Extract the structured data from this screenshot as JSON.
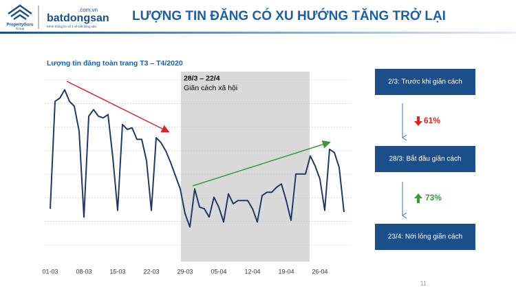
{
  "header": {
    "logo_brand": "PropertyGuru",
    "logo_group": "Group",
    "logo_site": "batdongsan",
    "logo_domain": ".com.vn",
    "logo_tagline": "Kênh thông tin số 1 về bất động sản",
    "title": "LƯỢNG TIN ĐĂNG CÓ XU HƯỚNG TĂNG TRỞ LẠI"
  },
  "chart_data": {
    "type": "line",
    "title": "Lượng tin đăng toàn trang T3 – T4/2020",
    "categories": [
      "01-03",
      null,
      null,
      null,
      null,
      null,
      null,
      "08-03",
      null,
      null,
      null,
      null,
      null,
      null,
      "15-03",
      null,
      null,
      null,
      null,
      null,
      null,
      "22-03",
      null,
      null,
      null,
      null,
      null,
      null,
      "29-03",
      null,
      null,
      null,
      null,
      null,
      null,
      "05-04",
      null,
      null,
      null,
      null,
      null,
      null,
      "12-04",
      null,
      null,
      null,
      null,
      null,
      null,
      "19-04",
      null,
      null,
      null,
      null,
      null,
      null,
      "26-04",
      null,
      null,
      null,
      null,
      null
    ],
    "values": [
      22,
      87,
      89,
      94,
      87,
      84,
      69,
      17,
      78,
      82,
      78,
      77,
      79,
      53,
      21,
      73,
      70,
      71,
      64,
      64,
      51,
      21,
      65,
      62,
      57,
      50,
      42,
      34,
      19,
      11,
      34,
      23,
      22,
      17,
      29,
      23,
      14,
      31,
      25,
      27,
      27,
      27,
      22,
      14,
      30,
      32,
      32,
      35,
      37,
      27,
      15,
      43,
      43,
      43,
      54,
      48,
      40,
      21,
      58,
      56,
      47,
      20
    ],
    "color": "#1f3864",
    "ylim": [
      0,
      100
    ],
    "grid": true,
    "annotation": {
      "period": "28/3 – 22/4",
      "label": "Giãn cách xã hội"
    }
  },
  "flow": {
    "steps": [
      "2/3: Trước khi giãn cách",
      "28/3: Bắt đầu giãn cách",
      "23/4: Nới lỏng giãn cách"
    ],
    "changes": [
      "61%",
      "73%"
    ]
  },
  "page_number": "11"
}
